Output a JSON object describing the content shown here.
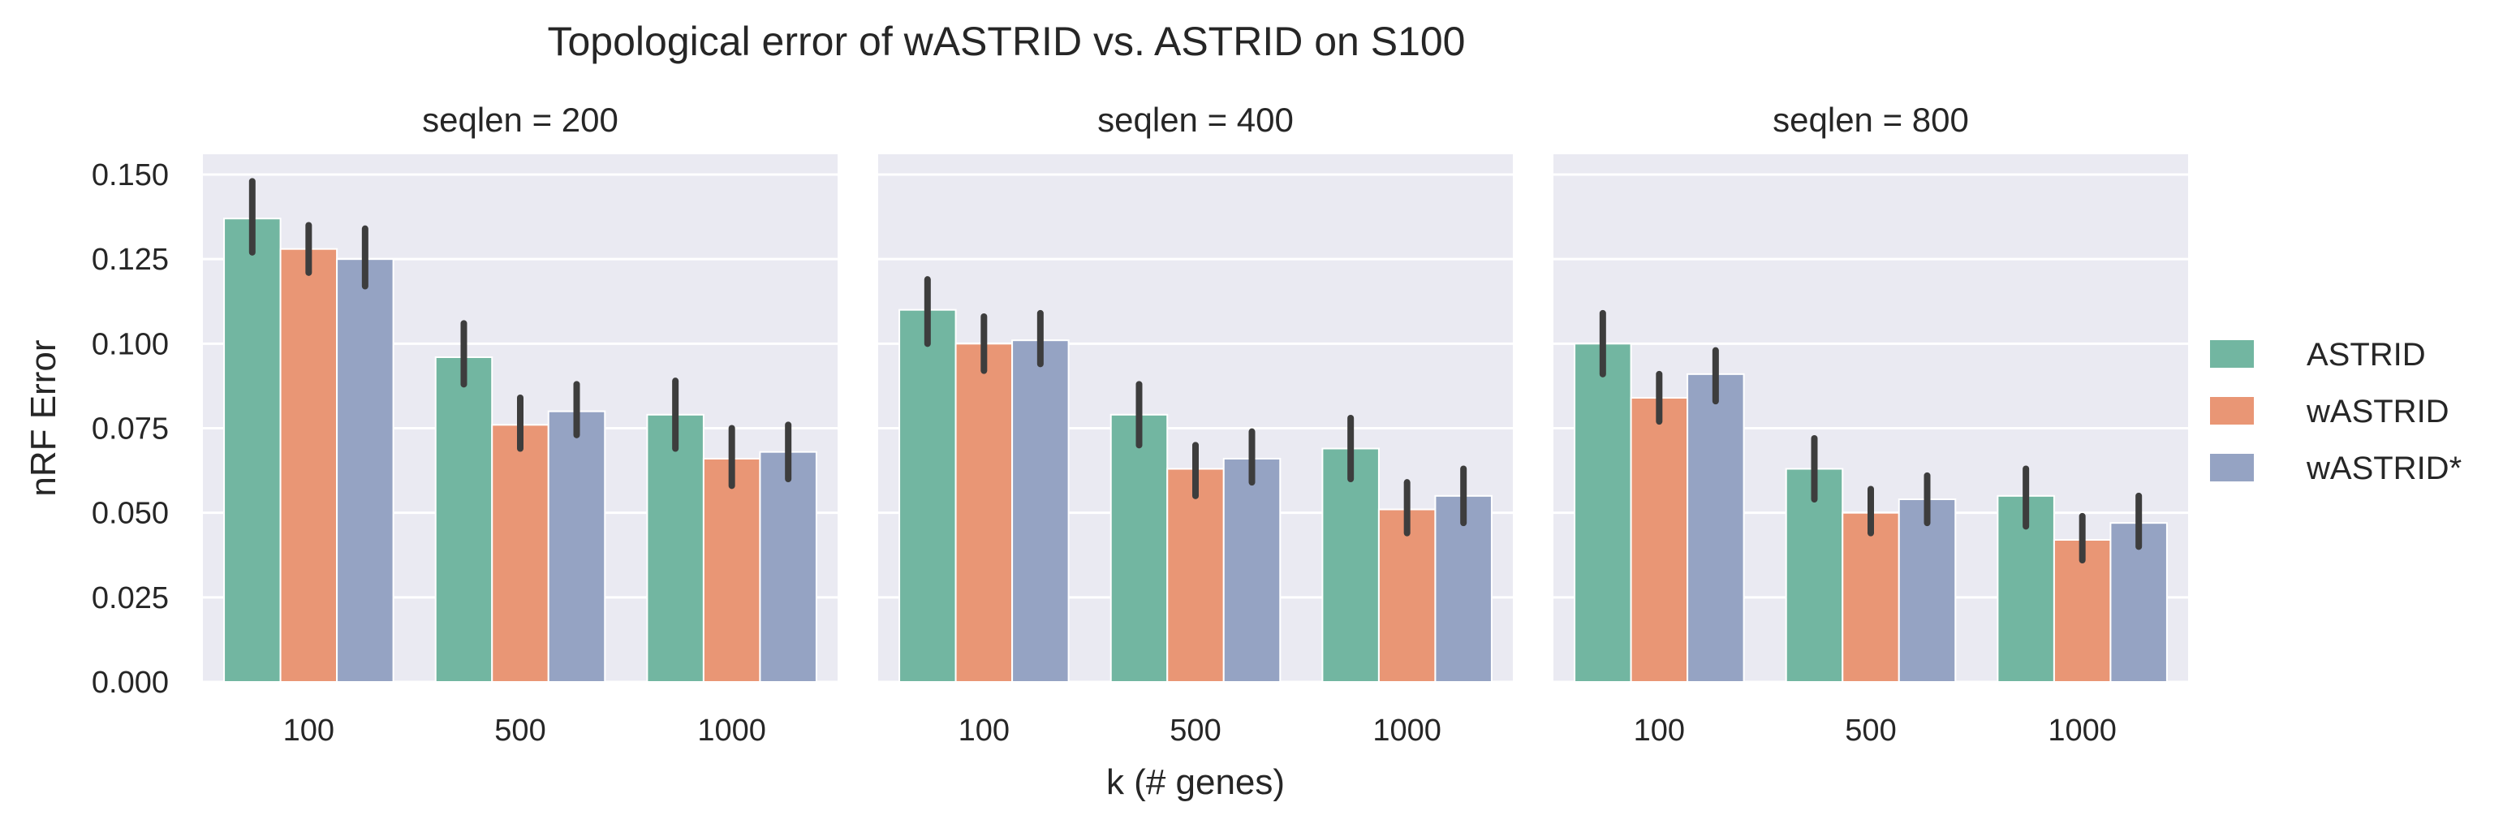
{
  "chart_data": {
    "type": "bar",
    "title": "Topological error of wASTRID vs. ASTRID on S100",
    "xlabel": "k (# genes)",
    "ylabel": "nRF Error",
    "categories": [
      "100",
      "500",
      "1000"
    ],
    "ylim": [
      0,
      0.156
    ],
    "yticks": [
      "0.000",
      "0.025",
      "0.050",
      "0.075",
      "0.100",
      "0.125",
      "0.150"
    ],
    "grid": true,
    "legend_placement": "right",
    "colors": {
      "ASTRID": "#72b6a1",
      "wASTRID": "#e99675",
      "wASTRID*": "#95a3c3",
      "panel_bg": "#eaeaf2",
      "error_bar": "#3d3d3d"
    },
    "series_names": [
      "ASTRID",
      "wASTRID",
      "wASTRID*"
    ],
    "facets": [
      {
        "title": "seqlen = 200",
        "series": [
          {
            "name": "ASTRID",
            "values": [
              0.137,
              0.096,
              0.079
            ],
            "err_low": [
              0.127,
              0.088,
              0.069
            ],
            "err_high": [
              0.148,
              0.106,
              0.089
            ]
          },
          {
            "name": "wASTRID",
            "values": [
              0.128,
              0.076,
              0.066
            ],
            "err_low": [
              0.121,
              0.069,
              0.058
            ],
            "err_high": [
              0.135,
              0.084,
              0.075
            ]
          },
          {
            "name": "wASTRID*",
            "values": [
              0.125,
              0.08,
              0.068
            ],
            "err_low": [
              0.117,
              0.073,
              0.06
            ],
            "err_high": [
              0.134,
              0.088,
              0.076
            ]
          }
        ]
      },
      {
        "title": "seqlen = 400",
        "series": [
          {
            "name": "ASTRID",
            "values": [
              0.11,
              0.079,
              0.069
            ],
            "err_low": [
              0.1,
              0.07,
              0.06
            ],
            "err_high": [
              0.119,
              0.088,
              0.078
            ]
          },
          {
            "name": "wASTRID",
            "values": [
              0.1,
              0.063,
              0.051
            ],
            "err_low": [
              0.092,
              0.055,
              0.044
            ],
            "err_high": [
              0.108,
              0.07,
              0.059
            ]
          },
          {
            "name": "wASTRID*",
            "values": [
              0.101,
              0.066,
              0.055
            ],
            "err_low": [
              0.094,
              0.059,
              0.047
            ],
            "err_high": [
              0.109,
              0.074,
              0.063
            ]
          }
        ]
      },
      {
        "title": "seqlen = 800",
        "series": [
          {
            "name": "ASTRID",
            "values": [
              0.1,
              0.063,
              0.055
            ],
            "err_low": [
              0.091,
              0.054,
              0.046
            ],
            "err_high": [
              0.109,
              0.072,
              0.063
            ]
          },
          {
            "name": "wASTRID",
            "values": [
              0.084,
              0.05,
              0.042
            ],
            "err_low": [
              0.077,
              0.044,
              0.036
            ],
            "err_high": [
              0.091,
              0.057,
              0.049
            ]
          },
          {
            "name": "wASTRID*",
            "values": [
              0.091,
              0.054,
              0.047
            ],
            "err_low": [
              0.083,
              0.047,
              0.04
            ],
            "err_high": [
              0.098,
              0.061,
              0.055
            ]
          }
        ]
      }
    ]
  }
}
